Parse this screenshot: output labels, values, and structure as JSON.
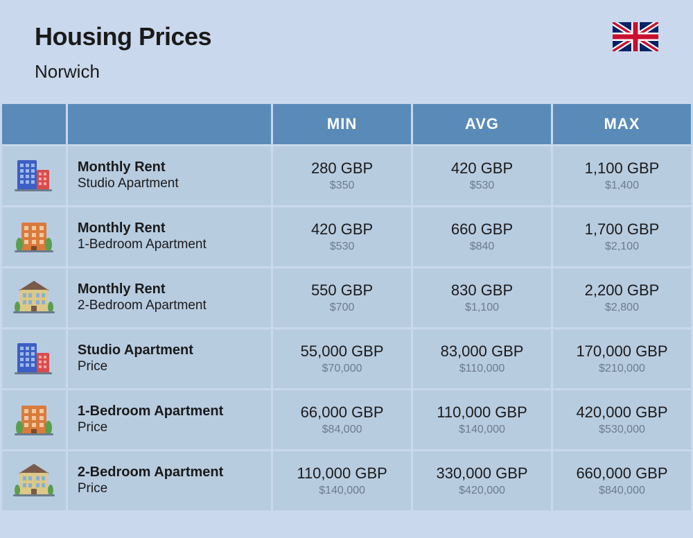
{
  "header": {
    "title": "Housing Prices",
    "subtitle": "Norwich"
  },
  "columns": {
    "min": "MIN",
    "avg": "AVG",
    "max": "MAX"
  },
  "rows": [
    {
      "icon": "building-blue",
      "title": "Monthly Rent",
      "sub": "Studio Apartment",
      "min_main": "280 GBP",
      "min_sub": "$350",
      "avg_main": "420 GBP",
      "avg_sub": "$530",
      "max_main": "1,100 GBP",
      "max_sub": "$1,400"
    },
    {
      "icon": "building-orange",
      "title": "Monthly Rent",
      "sub": "1-Bedroom Apartment",
      "min_main": "420 GBP",
      "min_sub": "$530",
      "avg_main": "660 GBP",
      "avg_sub": "$840",
      "max_main": "1,700 GBP",
      "max_sub": "$2,100"
    },
    {
      "icon": "building-house",
      "title": "Monthly Rent",
      "sub": "2-Bedroom Apartment",
      "min_main": "550 GBP",
      "min_sub": "$700",
      "avg_main": "830 GBP",
      "avg_sub": "$1,100",
      "max_main": "2,200 GBP",
      "max_sub": "$2,800"
    },
    {
      "icon": "building-blue",
      "title": "Studio Apartment",
      "sub": "Price",
      "min_main": "55,000 GBP",
      "min_sub": "$70,000",
      "avg_main": "83,000 GBP",
      "avg_sub": "$110,000",
      "max_main": "170,000 GBP",
      "max_sub": "$210,000"
    },
    {
      "icon": "building-orange",
      "title": "1-Bedroom Apartment",
      "sub": "Price",
      "min_main": "66,000 GBP",
      "min_sub": "$84,000",
      "avg_main": "110,000 GBP",
      "avg_sub": "$140,000",
      "max_main": "420,000 GBP",
      "max_sub": "$530,000"
    },
    {
      "icon": "building-house",
      "title": "2-Bedroom Apartment",
      "sub": "Price",
      "min_main": "110,000 GBP",
      "min_sub": "$140,000",
      "avg_main": "330,000 GBP",
      "avg_sub": "$420,000",
      "max_main": "660,000 GBP",
      "max_sub": "$840,000"
    }
  ],
  "styling": {
    "page_background": "#c9d8ec",
    "header_row_bg": "#5a8bb8",
    "header_row_text": "#ffffff",
    "cell_bg": "#b8cce0",
    "title_color": "#1a1a1a",
    "value_color": "#1a1a1a",
    "value_sub_color": "#6b7b8c",
    "title_fontsize": 36,
    "subtitle_fontsize": 26,
    "col_header_fontsize": 22,
    "row_title_fontsize": 20,
    "row_sub_fontsize": 19,
    "val_main_fontsize": 22,
    "val_sub_fontsize": 16,
    "icons": {
      "building-blue": {
        "primary": "#3b5fc4",
        "accent": "#d94b4b"
      },
      "building-orange": {
        "primary": "#d97b3c",
        "accent": "#5a9e4e"
      },
      "building-house": {
        "primary": "#dcc887",
        "roof": "#7a5a4a",
        "accent": "#5a9e4e"
      }
    },
    "flag": "uk"
  }
}
